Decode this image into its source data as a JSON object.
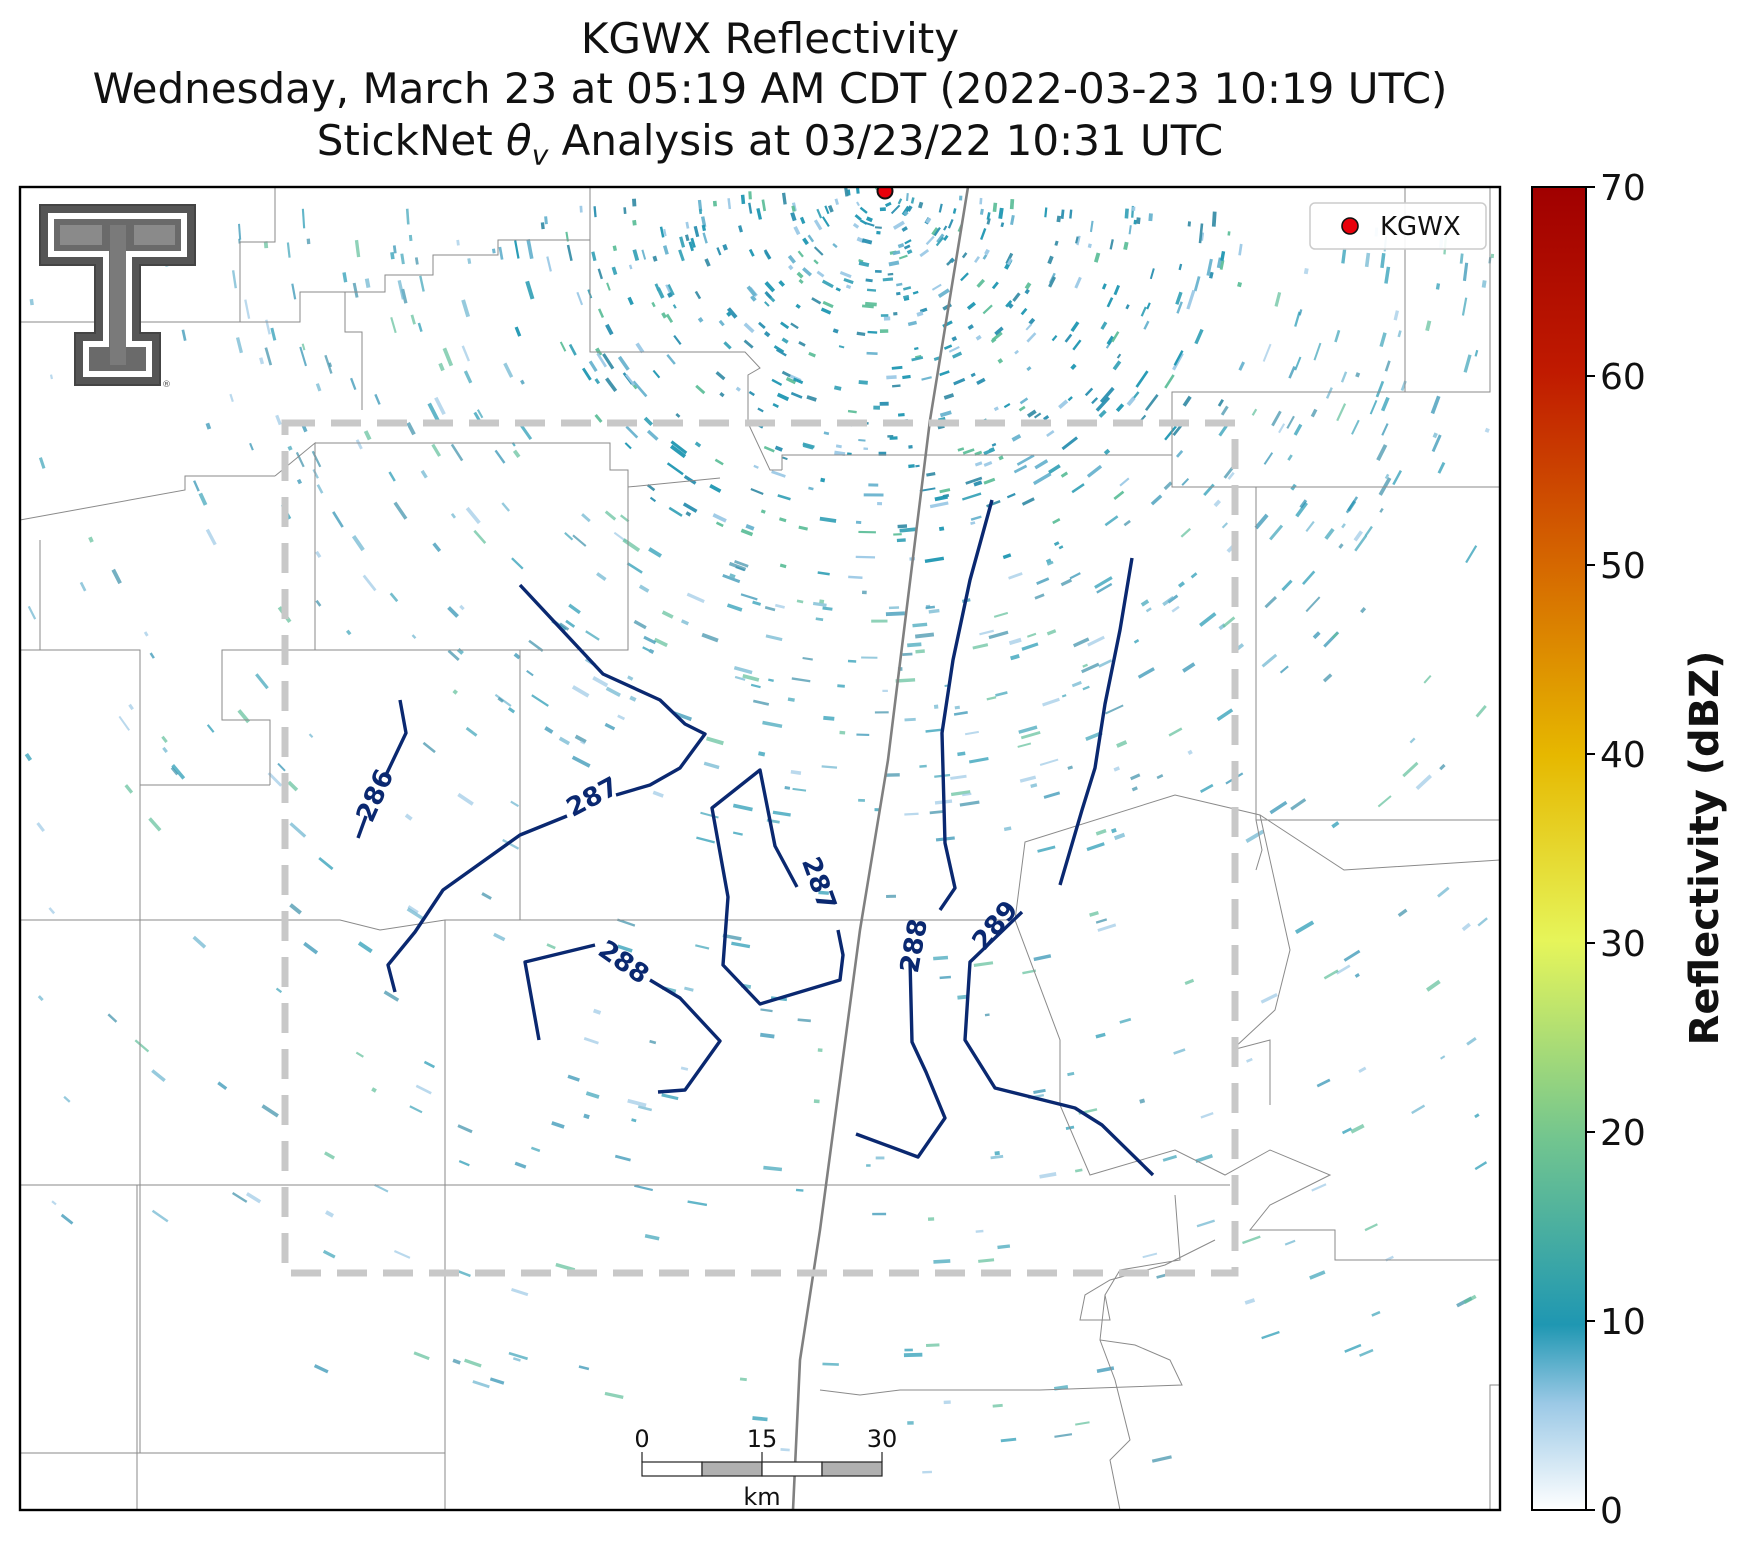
{
  "figure": {
    "title_line1": "KGWX Reflectivity",
    "title_line2": "Wednesday, March 23 at 05:19 AM CDT (2022-03-23 10:19 UTC)",
    "title_line3_prefix": "StickNet ",
    "title_line3_symbol": "θ",
    "title_line3_subscript": "v",
    "title_line3_suffix": " Analysis at 03/23/22 10:31 UTC"
  },
  "legend": {
    "label": "KGWX",
    "marker_color": "#e8000b"
  },
  "colorbar": {
    "label": "Reflectivity (dBZ)",
    "ticks": [
      "0",
      "10",
      "20",
      "30",
      "40",
      "50",
      "60",
      "70"
    ],
    "min": 0,
    "max": 70,
    "colors": [
      "#ffffff",
      "#9cc9e6",
      "#1f97b2",
      "#72c58f",
      "#e6f55a",
      "#e6b800",
      "#d66a00",
      "#c01a00",
      "#a00000"
    ]
  },
  "scale_bar": {
    "unit": "km",
    "ticks": [
      "0",
      "15",
      "30"
    ]
  },
  "contours": {
    "color": "#0a2870",
    "labels": [
      "286",
      "287",
      "287",
      "288",
      "288",
      "289"
    ]
  },
  "logo": {
    "name": "Texas Tech Double T",
    "mark": "®"
  }
}
